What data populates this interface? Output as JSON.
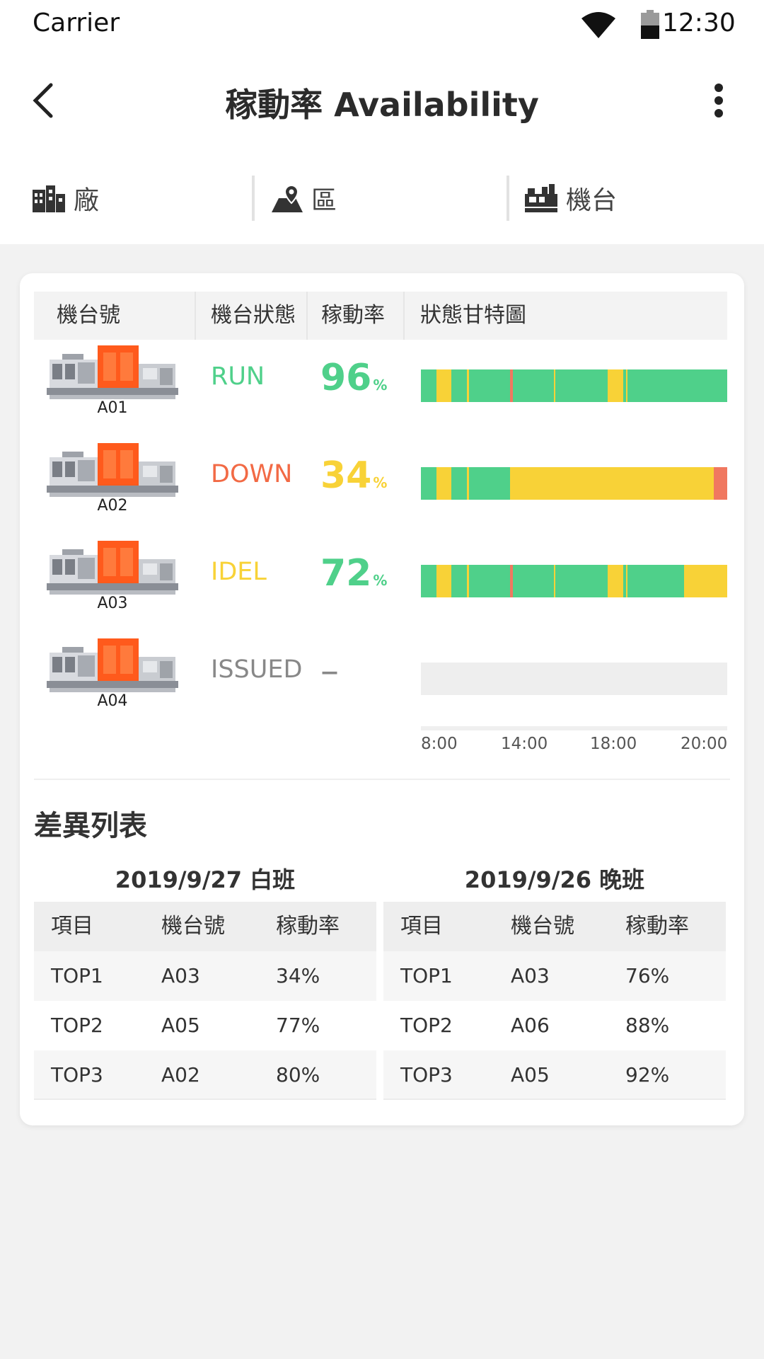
{
  "status_bar": {
    "carrier": "Carrier",
    "time": "12:30"
  },
  "header": {
    "title": "稼動率 Availability"
  },
  "filters": [
    {
      "label": "廠",
      "icon": "factory-icon"
    },
    {
      "label": "區",
      "icon": "map-pin-icon"
    },
    {
      "label": "機台",
      "icon": "machine-icon"
    }
  ],
  "machine_table": {
    "headers": [
      "機台號",
      "機台狀態",
      "稼動率",
      "狀態甘特圖"
    ],
    "rows": [
      {
        "id": "A01",
        "status": "RUN",
        "status_color": "#4fd08a",
        "rate": "96",
        "rate_unit": "%",
        "rate_color": "#4fd08a",
        "gantt": [
          {
            "c": "#4fd08a",
            "w": 5
          },
          {
            "c": "#f8d237",
            "w": 5
          },
          {
            "c": "#4fd08a",
            "w": 5
          },
          {
            "c": "#f8d237",
            "w": 0.6
          },
          {
            "c": "#4fd08a",
            "w": 13.4
          },
          {
            "c": "#f07860",
            "w": 1
          },
          {
            "c": "#4fd08a",
            "w": 13.5
          },
          {
            "c": "#f8d237",
            "w": 0.5
          },
          {
            "c": "#4fd08a",
            "w": 17
          },
          {
            "c": "#f8d237",
            "w": 5
          },
          {
            "c": "#4fd08a",
            "w": 1
          },
          {
            "c": "#f8d237",
            "w": 0.5
          },
          {
            "c": "#4fd08a",
            "w": 32.5
          }
        ]
      },
      {
        "id": "A02",
        "status": "DOWN",
        "status_color": "#f26a45",
        "rate": "34",
        "rate_unit": "%",
        "rate_color": "#f8d237",
        "gantt": [
          {
            "c": "#4fd08a",
            "w": 5
          },
          {
            "c": "#f8d237",
            "w": 5
          },
          {
            "c": "#4fd08a",
            "w": 5
          },
          {
            "c": "#f8d237",
            "w": 0.6
          },
          {
            "c": "#4fd08a",
            "w": 13.4
          },
          {
            "c": "#f8d237",
            "w": 66.6
          },
          {
            "c": "#f07860",
            "w": 4.4
          }
        ]
      },
      {
        "id": "A03",
        "status": "IDEL",
        "status_color": "#f8d237",
        "rate": "72",
        "rate_unit": "%",
        "rate_color": "#4fd08a",
        "gantt": [
          {
            "c": "#4fd08a",
            "w": 5
          },
          {
            "c": "#f8d237",
            "w": 5
          },
          {
            "c": "#4fd08a",
            "w": 5
          },
          {
            "c": "#f8d237",
            "w": 0.6
          },
          {
            "c": "#4fd08a",
            "w": 13.4
          },
          {
            "c": "#f07860",
            "w": 1
          },
          {
            "c": "#4fd08a",
            "w": 13.5
          },
          {
            "c": "#f8d237",
            "w": 0.5
          },
          {
            "c": "#4fd08a",
            "w": 17
          },
          {
            "c": "#f8d237",
            "w": 5
          },
          {
            "c": "#4fd08a",
            "w": 1
          },
          {
            "c": "#f8d237",
            "w": 0.5
          },
          {
            "c": "#4fd08a",
            "w": 18.5
          },
          {
            "c": "#f8d237",
            "w": 14
          }
        ]
      },
      {
        "id": "A04",
        "status": "ISSUED",
        "status_color": "#888888",
        "rate": "–",
        "rate_unit": "",
        "rate_color": "#888888",
        "gantt": []
      }
    ],
    "axis_ticks": [
      "8:00",
      "14:00",
      "18:00",
      "20:00"
    ]
  },
  "diff_section": {
    "title": "差異列表",
    "tables": [
      {
        "shift": "2019/9/27 白班",
        "headers": [
          "項目",
          "機台號",
          "稼動率"
        ],
        "rows": [
          [
            "TOP1",
            "A03",
            "34%"
          ],
          [
            "TOP2",
            "A05",
            "77%"
          ],
          [
            "TOP3",
            "A02",
            "80%"
          ]
        ]
      },
      {
        "shift": "2019/9/26 晚班",
        "headers": [
          "項目",
          "機台號",
          "稼動率"
        ],
        "rows": [
          [
            "TOP1",
            "A03",
            "76%"
          ],
          [
            "TOP2",
            "A06",
            "88%"
          ],
          [
            "TOP3",
            "A05",
            "92%"
          ]
        ]
      }
    ]
  }
}
